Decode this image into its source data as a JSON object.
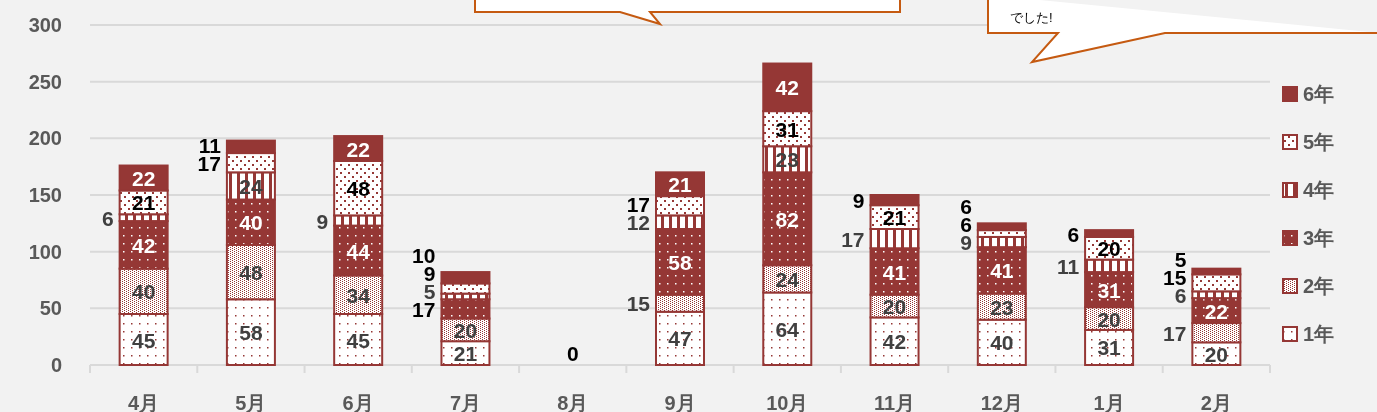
{
  "chart_data": {
    "type": "bar",
    "stacked": true,
    "categories": [
      "4月",
      "5月",
      "6月",
      "7月",
      "8月",
      "9月",
      "10月",
      "11月",
      "12月",
      "1月",
      "2月"
    ],
    "series": [
      {
        "name": "1年",
        "color": "#953735",
        "values": [
          45,
          58,
          45,
          21,
          0,
          47,
          64,
          42,
          40,
          31,
          20
        ],
        "value_labels": [
          "45",
          "58",
          "45",
          "21",
          "0",
          "47",
          "64",
          "42",
          "40",
          "31",
          "20"
        ]
      },
      {
        "name": "2年",
        "color": "#953735",
        "values": [
          40,
          48,
          34,
          20,
          0,
          15,
          24,
          20,
          23,
          20,
          17
        ],
        "value_labels": [
          "40",
          "48",
          "34",
          "20",
          null,
          "15",
          "24",
          "20",
          "23",
          "20",
          "17"
        ]
      },
      {
        "name": "3年",
        "color": "#953735",
        "values": [
          42,
          40,
          44,
          17,
          0,
          58,
          82,
          41,
          41,
          31,
          22
        ],
        "value_labels": [
          "42",
          "40",
          "44",
          "17",
          null,
          "58",
          "82",
          "41",
          "41",
          "31",
          "22"
        ]
      },
      {
        "name": "4年",
        "color": "#953735",
        "values": [
          6,
          24,
          9,
          5,
          0,
          12,
          23,
          17,
          9,
          11,
          6
        ],
        "value_labels": [
          "6",
          "24",
          "9",
          "5",
          null,
          "12",
          "23",
          "17",
          "9",
          "11",
          "6"
        ]
      },
      {
        "name": "5年",
        "color": "#953735",
        "values": [
          21,
          17,
          48,
          9,
          0,
          17,
          31,
          21,
          6,
          20,
          15
        ],
        "value_labels": [
          "21",
          "17",
          "48",
          "9",
          null,
          "17",
          "31",
          "21",
          "6",
          "20",
          "15"
        ]
      },
      {
        "name": "6年",
        "color": "#953735",
        "values": [
          22,
          11,
          22,
          10,
          0,
          21,
          42,
          9,
          6,
          6,
          5
        ],
        "value_labels": [
          "22",
          "11",
          "22",
          "10",
          null,
          "21",
          "42",
          "9",
          "6",
          "6",
          "5"
        ]
      }
    ],
    "ylim": [
      0,
      300
    ],
    "yticks": [
      0,
      50,
      100,
      150,
      200,
      250,
      300
    ],
    "grid": "y",
    "legend": "right",
    "annotations": [
      "でした!"
    ]
  }
}
